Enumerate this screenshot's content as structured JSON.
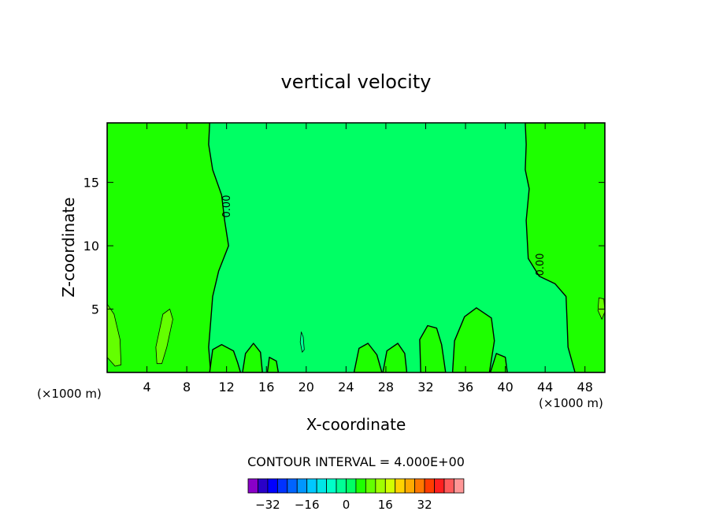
{
  "chart_data": {
    "type": "heatmap",
    "title": "vertical velocity",
    "xlabel": "X-coordinate",
    "ylabel": "Z-coordinate",
    "x_unit": "(×1000 m)",
    "y_unit": "(×1000 m)",
    "xlim": [
      0,
      50
    ],
    "ylim": [
      0,
      19.7
    ],
    "x_ticks": [
      4,
      8,
      12,
      16,
      20,
      24,
      28,
      32,
      36,
      40,
      44,
      48
    ],
    "y_ticks": [
      5,
      10,
      15
    ],
    "contour_interval_text": "CONTOUR INTERVAL = 4.000E+00",
    "contour_labels": [
      "0.00",
      "0.00"
    ],
    "colorbar": {
      "tick_labels": [
        "-32",
        "-16",
        "0",
        "16",
        "32"
      ],
      "tick_values": [
        -32,
        -16,
        0,
        16,
        32
      ],
      "min": -40,
      "step": 4,
      "colors": [
        "#8a00c8",
        "#2a00c8",
        "#0000ff",
        "#0032ff",
        "#0064ff",
        "#0096ff",
        "#00c8ff",
        "#00e6e6",
        "#00ffc8",
        "#00ff96",
        "#00ff64",
        "#1eff00",
        "#64ff00",
        "#a0ff00",
        "#d2ff00",
        "#ffd200",
        "#ffaa00",
        "#ff7800",
        "#ff3c00",
        "#ff1e1e",
        "#ff5a5a",
        "#ff9696"
      ]
    },
    "background_color": "#00ff64",
    "updraft_color": "#1eff00",
    "weak_updraft_color": "#64ff00",
    "weak_downdraft_color": "#00ff96",
    "regions": [
      {
        "kind": "updraft",
        "points": [
          [
            0,
            19.7
          ],
          [
            10.3,
            19.7
          ],
          [
            10.2,
            18
          ],
          [
            10.6,
            16
          ],
          [
            11.5,
            14
          ],
          [
            11.8,
            12
          ],
          [
            12.2,
            10
          ],
          [
            11.2,
            8
          ],
          [
            10.6,
            6
          ],
          [
            10.4,
            4
          ],
          [
            10.2,
            2
          ],
          [
            10.4,
            0
          ],
          [
            0,
            0
          ]
        ]
      },
      {
        "kind": "updraft",
        "points": [
          [
            42,
            19.7
          ],
          [
            50,
            19.7
          ],
          [
            50,
            0
          ],
          [
            47,
            0
          ],
          [
            46.3,
            2
          ],
          [
            46.2,
            4
          ],
          [
            46.1,
            6
          ],
          [
            45,
            7
          ],
          [
            43.4,
            7.6
          ],
          [
            42.3,
            9
          ],
          [
            42.2,
            10.5
          ],
          [
            42.1,
            12
          ],
          [
            42.4,
            14.5
          ],
          [
            42,
            16
          ],
          [
            42.1,
            18
          ]
        ]
      },
      {
        "kind": "updraft",
        "points": [
          [
            10.3,
            0
          ],
          [
            10.6,
            1.8
          ],
          [
            11.5,
            2.2
          ],
          [
            12.7,
            1.7
          ],
          [
            13.1,
            0.8
          ],
          [
            13.4,
            0
          ]
        ]
      },
      {
        "kind": "updraft",
        "points": [
          [
            13.6,
            0
          ],
          [
            13.9,
            1.5
          ],
          [
            14.7,
            2.3
          ],
          [
            15.4,
            1.6
          ],
          [
            15.6,
            0
          ]
        ]
      },
      {
        "kind": "updraft",
        "points": [
          [
            16.1,
            0
          ],
          [
            16.3,
            1.2
          ],
          [
            17,
            0.9
          ],
          [
            17.2,
            0
          ]
        ]
      },
      {
        "kind": "updraft",
        "points": [
          [
            24.8,
            0
          ],
          [
            25.3,
            1.9
          ],
          [
            26.2,
            2.3
          ],
          [
            27.1,
            1.4
          ],
          [
            27.6,
            0
          ]
        ]
      },
      {
        "kind": "updraft",
        "points": [
          [
            27.7,
            0
          ],
          [
            28.1,
            1.7
          ],
          [
            29.2,
            2.3
          ],
          [
            29.9,
            1.5
          ],
          [
            30.1,
            0
          ]
        ]
      },
      {
        "kind": "updraft",
        "points": [
          [
            31.5,
            0
          ],
          [
            31.4,
            2.6
          ],
          [
            32.2,
            3.7
          ],
          [
            33.1,
            3.5
          ],
          [
            33.6,
            2.2
          ],
          [
            34,
            0
          ]
        ]
      },
      {
        "kind": "updraft",
        "points": [
          [
            34.7,
            0
          ],
          [
            34.9,
            2.5
          ],
          [
            35.9,
            4.4
          ],
          [
            37.1,
            5.1
          ],
          [
            38.6,
            4.3
          ],
          [
            38.9,
            2.5
          ],
          [
            38.4,
            0
          ]
        ]
      },
      {
        "kind": "updraft",
        "points": [
          [
            38.5,
            0
          ],
          [
            39.1,
            1.5
          ],
          [
            40,
            1.2
          ],
          [
            40.2,
            0
          ]
        ]
      },
      {
        "kind": "weak_updraft",
        "points": [
          [
            0,
            5.4
          ],
          [
            0.7,
            4.6
          ],
          [
            1.3,
            2.6
          ],
          [
            1.4,
            0.6
          ],
          [
            0.8,
            0.5
          ],
          [
            0,
            1.2
          ]
        ]
      },
      {
        "kind": "weak_updraft",
        "points": [
          [
            5.6,
            4.6
          ],
          [
            6.3,
            5
          ],
          [
            6.6,
            4.2
          ],
          [
            6,
            2
          ],
          [
            5.5,
            0.7
          ],
          [
            5,
            0.7
          ],
          [
            4.9,
            2
          ]
        ]
      },
      {
        "kind": "weak_updraft",
        "points": [
          [
            49.4,
            5.9
          ],
          [
            49.9,
            5.8
          ],
          [
            50,
            4.8
          ],
          [
            49.7,
            4.2
          ],
          [
            49.3,
            4.9
          ]
        ]
      },
      {
        "kind": "weak_downdraft",
        "points": [
          [
            19.5,
            3.2
          ],
          [
            19.7,
            2.8
          ],
          [
            19.8,
            1.8
          ],
          [
            19.6,
            1.6
          ],
          [
            19.4,
            2.4
          ]
        ]
      }
    ]
  }
}
